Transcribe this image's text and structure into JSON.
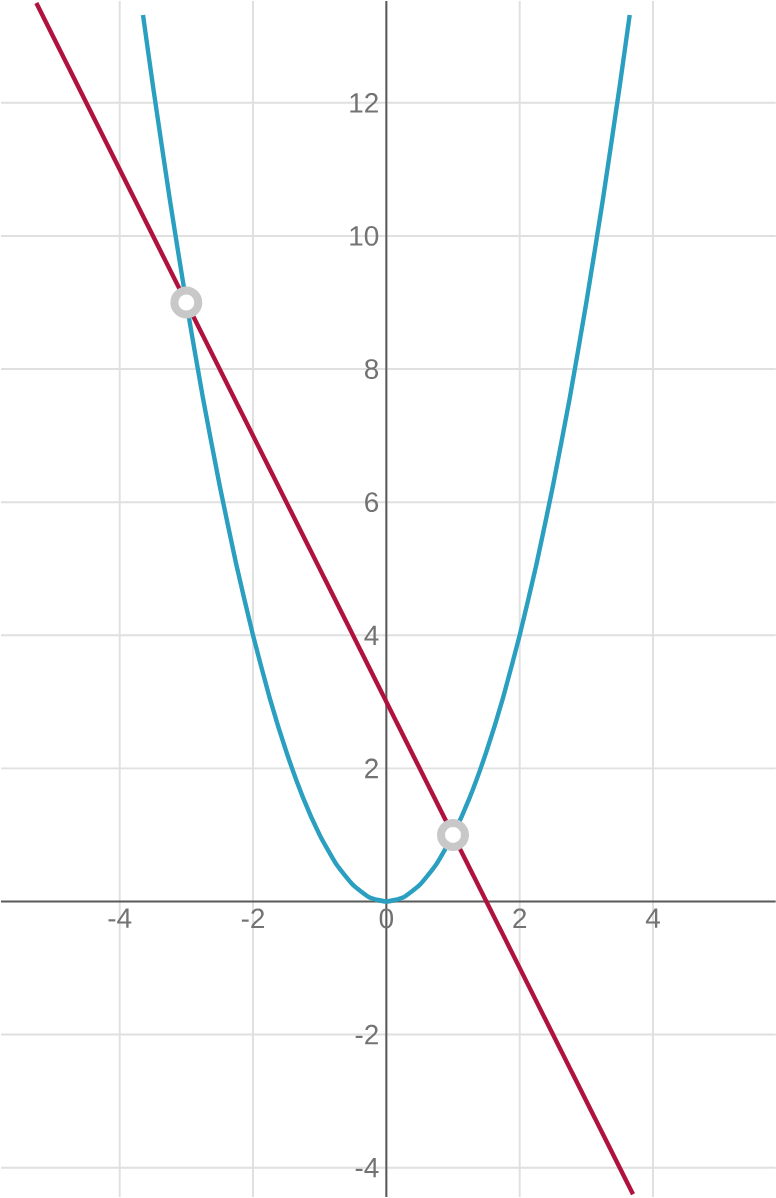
{
  "chart_data": {
    "type": "line",
    "xlim": [
      -5.78,
      5.84
    ],
    "ylim": [
      -4.44,
      13.53
    ],
    "xticks": [
      -4,
      -2,
      0,
      2,
      4
    ],
    "yticks": [
      -4,
      -2,
      2,
      4,
      6,
      8,
      10,
      12
    ],
    "grid": true,
    "series": [
      {
        "color": "#2a9fc0",
        "x": [
          -3.65,
          -3.5,
          -3.25,
          -3,
          -2.75,
          -2.5,
          -2.25,
          -2,
          -1.75,
          -1.5,
          -1.25,
          -1,
          -0.75,
          -0.5,
          -0.25,
          0,
          0.25,
          0.5,
          0.75,
          1,
          1.25,
          1.5,
          1.75,
          2,
          2.25,
          2.5,
          2.75,
          3,
          3.25,
          3.5,
          3.65
        ],
        "values": [
          13.32,
          12.25,
          10.56,
          9,
          7.56,
          6.25,
          5.06,
          4,
          3.06,
          2.25,
          1.56,
          1,
          0.56,
          0.25,
          0.06,
          0,
          0.06,
          0.25,
          0.56,
          1,
          1.56,
          2.25,
          3.06,
          4,
          5.06,
          6.25,
          7.56,
          9,
          10.56,
          12.25,
          13.32
        ]
      },
      {
        "color": "#b0123e",
        "x": [
          -5.25,
          3.7
        ],
        "values": [
          13.5,
          -4.4
        ]
      },
      {
        "type": "scatter",
        "color": "#c8c8c8",
        "x": [
          -3,
          1
        ],
        "values": [
          9,
          1
        ]
      }
    ]
  }
}
